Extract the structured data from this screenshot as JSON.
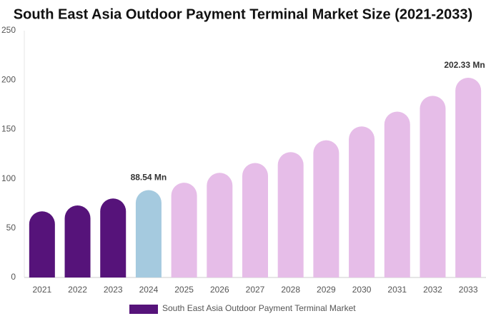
{
  "chart_data": {
    "type": "bar",
    "title": "South East Asia Outdoor Payment Terminal Market Size (2021-2033)",
    "categories": [
      "2021",
      "2022",
      "2023",
      "2024",
      "2025",
      "2026",
      "2027",
      "2028",
      "2029",
      "2030",
      "2031",
      "2032",
      "2033"
    ],
    "series": [
      {
        "name": "South East Asia Outdoor Payment Terminal Market",
        "color": "#56137a",
        "colors": [
          "#56137a",
          "#56137a",
          "#56137a",
          "#a5cadf",
          "#e6bde8",
          "#e6bde8",
          "#e6bde8",
          "#e6bde8",
          "#e6bde8",
          "#e6bde8",
          "#e6bde8",
          "#e6bde8",
          "#e6bde8"
        ],
        "values": [
          67,
          73,
          80,
          88.54,
          96,
          106,
          116,
          127,
          139,
          153,
          168,
          184,
          202.33
        ],
        "value_labels": [
          null,
          null,
          null,
          "88.54 Mn",
          null,
          null,
          null,
          null,
          null,
          null,
          null,
          null,
          "202.33 Mn"
        ]
      }
    ],
    "ylim": [
      0,
      250
    ],
    "yticks": [
      0,
      50,
      100,
      150,
      200,
      250
    ],
    "grid": false
  }
}
